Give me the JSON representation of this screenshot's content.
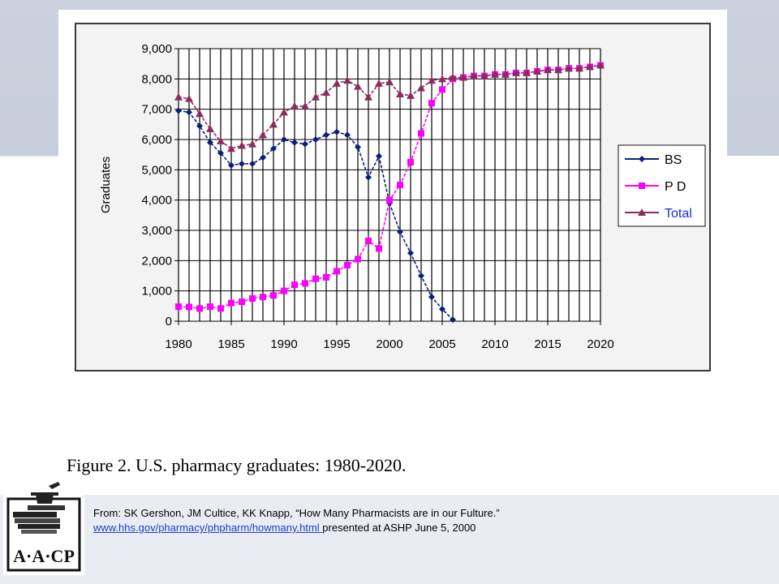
{
  "chart_data": {
    "type": "line",
    "title": "",
    "xlabel": "",
    "ylabel": "Graduates",
    "xlim": [
      1980,
      2020
    ],
    "ylim": [
      0,
      9000
    ],
    "x_ticks": [
      "1980",
      "1985",
      "1990",
      "1995",
      "2000",
      "2005",
      "2010",
      "2015",
      "2020"
    ],
    "y_ticks": [
      "0",
      "1,000",
      "2,000",
      "3,000",
      "4,000",
      "5,000",
      "6,000",
      "7,000",
      "8,000",
      "9,000"
    ],
    "grid": true,
    "legend_position": "right",
    "series": [
      {
        "name": "BS",
        "color": "#0a1f7a",
        "marker": "diamond",
        "x": [
          1980,
          1981,
          1982,
          1983,
          1984,
          1985,
          1986,
          1987,
          1988,
          1989,
          1990,
          1991,
          1992,
          1993,
          1994,
          1995,
          1996,
          1997,
          1998,
          1999,
          2000,
          2001,
          2002,
          2003,
          2004,
          2005,
          2006
        ],
        "values": [
          6950,
          6900,
          6450,
          5900,
          5550,
          5150,
          5200,
          5200,
          5400,
          5700,
          6000,
          5900,
          5850,
          6000,
          6150,
          6250,
          6150,
          5750,
          4750,
          5450,
          3900,
          2950,
          2250,
          1500,
          800,
          400,
          50
        ]
      },
      {
        "name": "P D",
        "color": "#ff00ff",
        "marker": "square",
        "x": [
          1980,
          1981,
          1982,
          1983,
          1984,
          1985,
          1986,
          1987,
          1988,
          1989,
          1990,
          1991,
          1992,
          1993,
          1994,
          1995,
          1996,
          1997,
          1998,
          1999,
          2000,
          2001,
          2002,
          2003,
          2004,
          2005,
          2006,
          2007,
          2008,
          2009,
          2010,
          2011,
          2012,
          2013,
          2014,
          2015,
          2016,
          2017,
          2018,
          2019,
          2020
        ],
        "values": [
          480,
          470,
          420,
          480,
          420,
          600,
          640,
          750,
          800,
          850,
          1000,
          1200,
          1250,
          1400,
          1450,
          1650,
          1850,
          2050,
          2650,
          2400,
          4000,
          4500,
          5250,
          6200,
          7200,
          7650,
          8000,
          8050,
          8100,
          8100,
          8150,
          8150,
          8200,
          8200,
          8250,
          8300,
          8300,
          8350,
          8350,
          8400,
          8450
        ]
      },
      {
        "name": "Total",
        "color": "#8b2c5e",
        "marker": "triangle",
        "x": [
          1980,
          1981,
          1982,
          1983,
          1984,
          1985,
          1986,
          1987,
          1988,
          1989,
          1990,
          1991,
          1992,
          1993,
          1994,
          1995,
          1996,
          1997,
          1998,
          1999,
          2000,
          2001,
          2002,
          2003,
          2004,
          2005,
          2006,
          2007,
          2008,
          2009,
          2010,
          2011,
          2012,
          2013,
          2014,
          2015,
          2016,
          2017,
          2018,
          2019,
          2020
        ],
        "values": [
          7400,
          7350,
          6850,
          6350,
          5950,
          5700,
          5800,
          5850,
          6150,
          6500,
          6900,
          7100,
          7100,
          7400,
          7550,
          7850,
          7950,
          7750,
          7400,
          7850,
          7900,
          7500,
          7450,
          7700,
          7950,
          8000,
          8050,
          8050,
          8100,
          8100,
          8150,
          8150,
          8200,
          8200,
          8250,
          8300,
          8300,
          8350,
          8350,
          8400,
          8450
        ]
      }
    ]
  },
  "caption": "Figure 2. U.S. pharmacy graduates: 1980-2020.",
  "credit": {
    "line1": "From: SK Gershon, JM Cultice, KK Knapp, “How Many Pharmacists are in our Fulture.”",
    "link": "www.hhs.gov/pharmacy/phpharm/howmany.html ",
    "line2_rest": " presented at ASHP June 5, 2000"
  },
  "logo": {
    "text": "A·A·CP",
    "icon": "mortar-pestle-books-icon"
  }
}
